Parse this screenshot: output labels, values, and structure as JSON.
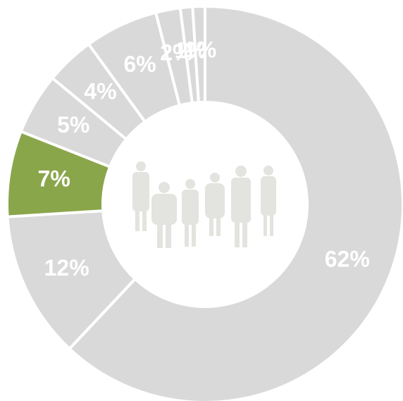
{
  "chart_data": {
    "type": "pie",
    "values": [
      62,
      12,
      7,
      5,
      4,
      6,
      2,
      1,
      1
    ],
    "value_labels": [
      "62%",
      "12%",
      "7%",
      "5%",
      "4%",
      "6%",
      "2%",
      "1%",
      "1%"
    ],
    "colors": [
      "#d9d9d9",
      "#d9d9d9",
      "#8aa64b",
      "#d9d9d9",
      "#d9d9d9",
      "#d9d9d9",
      "#d9d9d9",
      "#d9d9d9",
      "#d9d9d9"
    ]
  }
}
